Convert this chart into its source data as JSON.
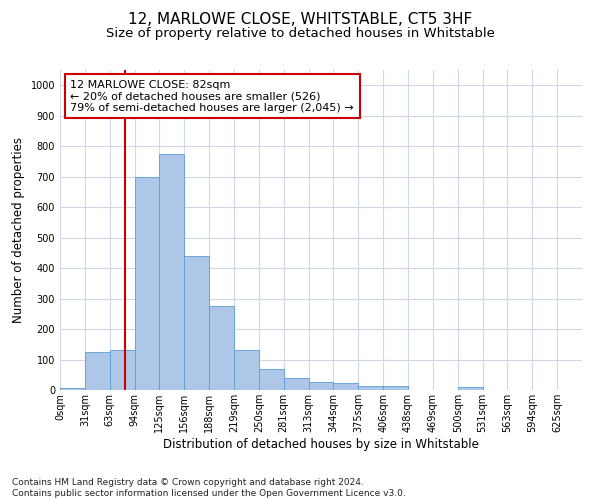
{
  "title": "12, MARLOWE CLOSE, WHITSTABLE, CT5 3HF",
  "subtitle": "Size of property relative to detached houses in Whitstable",
  "xlabel": "Distribution of detached houses by size in Whitstable",
  "ylabel": "Number of detached properties",
  "footnote1": "Contains HM Land Registry data © Crown copyright and database right 2024.",
  "footnote2": "Contains public sector information licensed under the Open Government Licence v3.0.",
  "bin_labels": [
    "0sqm",
    "31sqm",
    "63sqm",
    "94sqm",
    "125sqm",
    "156sqm",
    "188sqm",
    "219sqm",
    "250sqm",
    "281sqm",
    "313sqm",
    "344sqm",
    "375sqm",
    "406sqm",
    "438sqm",
    "469sqm",
    "500sqm",
    "531sqm",
    "563sqm",
    "594sqm",
    "625sqm"
  ],
  "bar_values": [
    8,
    125,
    130,
    700,
    775,
    440,
    275,
    130,
    70,
    40,
    25,
    22,
    12,
    12,
    0,
    0,
    10,
    0,
    0,
    0,
    0
  ],
  "bar_color": "#aec6e8",
  "bar_edge_color": "#5a9fd4",
  "grid_color": "#d0d8e8",
  "vline_color": "#cc0000",
  "annotation_text": "12 MARLOWE CLOSE: 82sqm\n← 20% of detached houses are smaller (526)\n79% of semi-detached houses are larger (2,045) →",
  "annotation_box_color": "#ffffff",
  "annotation_box_edge": "#cc0000",
  "ylim": [
    0,
    1050
  ],
  "title_fontsize": 11,
  "subtitle_fontsize": 9.5,
  "ylabel_fontsize": 8.5,
  "xlabel_fontsize": 8.5,
  "tick_fontsize": 7,
  "annotation_fontsize": 8,
  "footnote_fontsize": 6.5
}
